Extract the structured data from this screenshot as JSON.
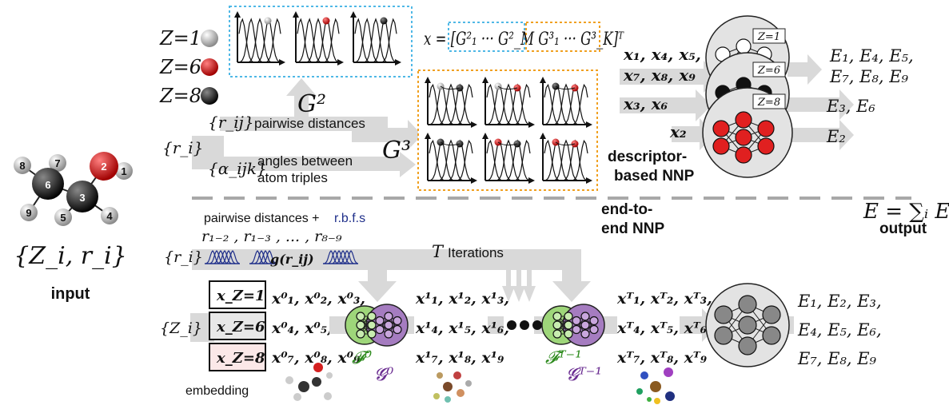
{
  "input": {
    "label": "input",
    "set_label": "{Z_i, r_i}",
    "atoms": [
      "1",
      "2",
      "3",
      "4",
      "5",
      "6",
      "7",
      "8",
      "9"
    ]
  },
  "species": [
    {
      "label": "Z=1",
      "color": "#c8c8c8"
    },
    {
      "label": "Z=6",
      "color": "#d42020"
    },
    {
      "label": "Z=8",
      "color": "#333333"
    }
  ],
  "descriptor": {
    "ri": "{r_i}",
    "rij": "{r_ij}",
    "rij_text": "pairwise distances",
    "alpha": "{α_ijk}",
    "alpha_text_1": "angles between",
    "alpha_text_2": "atom triples",
    "G2": "G²",
    "G3": "G³",
    "vector": "x = [G²₁ ··· G²_M G³₁ ··· G³_K]ᵀ",
    "title_1": "descriptor-",
    "title_2": "based NNP",
    "inputs": [
      "x₁, x₄, x₅,",
      "x₇, x₈, x₉",
      "x₃, x₆",
      "x₂"
    ],
    "nets": [
      "Z=1",
      "Z=6",
      "Z=8"
    ],
    "outputs": [
      "E₁, E₄, E₅,",
      "E₇, E₈, E₉",
      "E₃, E₆",
      "E₂"
    ]
  },
  "total": {
    "formula": "E = ∑ᵢ Eᵢ",
    "label": "output"
  },
  "end_to_end": {
    "title_1": "end-to-",
    "title_2": "end NNP",
    "pairwise_text": "pairwise distances +",
    "rbfs_text": "r.b.f.s",
    "ri": "{r_i}",
    "distances": "r₁₋₂ , r₁₋₃ , ... , r₈₋₉",
    "g_rij": "g(r_ij)",
    "iterations_T": "T",
    "iterations_text": "Iterations",
    "zi": "{Z_i}",
    "embeddings": [
      "x_Z=1",
      "x_Z=6",
      "x_Z=8"
    ],
    "embedding_label": "embedding",
    "x0": [
      "x⁰₁, x⁰₂, x⁰₃,",
      "x⁰₄, x⁰₅, x⁰₆,",
      "x⁰₇, x⁰₈, x⁰₉"
    ],
    "x1": [
      "x¹₁, x¹₂, x¹₃,",
      "x¹₄, x¹₅, x¹₆,",
      "x¹₇, x¹₈, x¹₉"
    ],
    "xT": [
      "xᵀ₁, xᵀ₂, xᵀ₃,",
      "xᵀ₄, xᵀ₅, xᵀ₆,",
      "xᵀ₇, xᵀ₈, xᵀ₉"
    ],
    "F0": "𝓕⁰",
    "G0": "𝓖⁰",
    "FT": "𝓕ᵀ⁻¹",
    "GT": "𝓖ᵀ⁻¹",
    "outputs": [
      "E₁, E₂, E₃,",
      "E₄, E₅, E₆,",
      "E₇, E₈, E₉"
    ]
  },
  "colors": {
    "arrow": "#d9d9d9",
    "g2_box": "#4fb8e6",
    "g3_box": "#f0a020",
    "green_net": "#9ed67a",
    "purple_net": "#a57cc0",
    "blue_text": "#1f2f8a",
    "net_bg": "#e0e0e0",
    "neuron_red": "#e02020"
  }
}
